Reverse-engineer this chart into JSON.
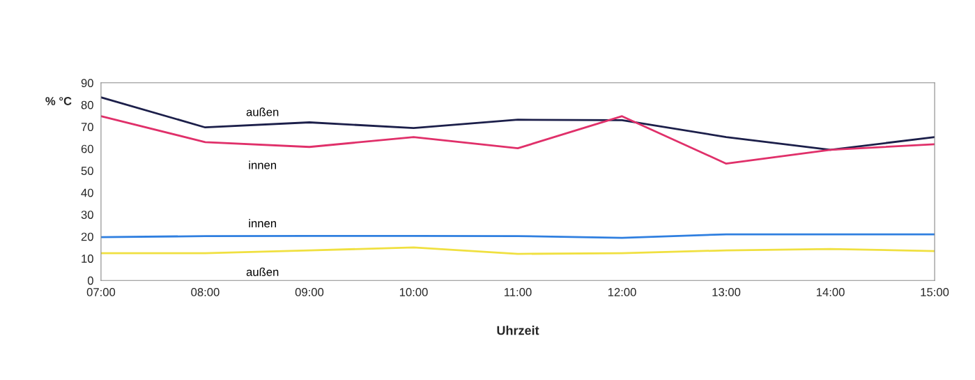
{
  "chart_data": {
    "type": "line",
    "xlabel": "Uhrzeit",
    "ylabel": "% °C",
    "categories": [
      "07:00",
      "08:00",
      "09:00",
      "10:00",
      "11:00",
      "12:00",
      "13:00",
      "14:00",
      "15:00"
    ],
    "ylim": [
      0,
      90
    ],
    "yticks": [
      0,
      10,
      20,
      30,
      40,
      50,
      60,
      70,
      80,
      90
    ],
    "grid": false,
    "legend": false,
    "marker": "none",
    "line_style": "solid",
    "series": [
      {
        "name": "außen",
        "color": "#1c1f4a",
        "values": [
          83.4,
          69.7,
          72,
          69.4,
          73.2,
          73,
          65.3,
          59.5,
          65.3
        ]
      },
      {
        "name": "innen",
        "color": "#e0306a",
        "values": [
          74.8,
          63,
          60.8,
          65.3,
          60.2,
          74.8,
          53.2,
          59.5,
          62
        ]
      },
      {
        "name": "innen",
        "color": "#2f7fe0",
        "values": [
          19.7,
          20.2,
          20.3,
          20.3,
          20.2,
          19.4,
          21,
          21,
          21
        ]
      },
      {
        "name": "außen",
        "color": "#f0e040",
        "values": [
          12.4,
          12.4,
          13.7,
          15,
          12.1,
          12.4,
          13.7,
          14.3,
          13.4
        ]
      }
    ]
  }
}
